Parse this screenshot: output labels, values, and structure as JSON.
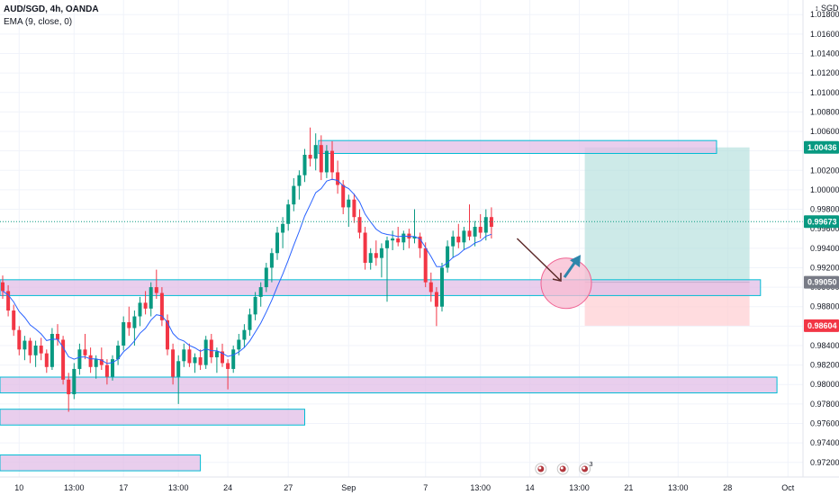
{
  "header": {
    "symbol_line": "AUD/SGD, 4h, OANDA",
    "indicator_line": "EMA (9, close, 0)"
  },
  "chart_data": {
    "type": "candlestick",
    "currency_label": "SGD",
    "ylim": [
      0.9705,
      1.0195
    ],
    "y_ticks": [
      "1.01800",
      "1.01600",
      "1.01400",
      "1.01200",
      "1.01000",
      "1.00800",
      "1.00600",
      "1.00400",
      "1.00200",
      "1.00000",
      "0.99800",
      "0.99600",
      "0.99400",
      "0.99200",
      "0.99000",
      "0.98800",
      "0.98600",
      "0.98400",
      "0.98200",
      "0.98000",
      "0.97800",
      "0.97600",
      "0.97400",
      "0.97200"
    ],
    "y_tick_values": [
      1.018,
      1.016,
      1.014,
      1.012,
      1.01,
      1.008,
      1.006,
      1.004,
      1.002,
      1.0,
      0.998,
      0.996,
      0.994,
      0.992,
      0.99,
      0.988,
      0.986,
      0.984,
      0.982,
      0.98,
      0.978,
      0.976,
      0.974,
      0.972
    ],
    "x_ticks": [
      {
        "label": "10",
        "bar": 3
      },
      {
        "label": "13:00",
        "bar": 13
      },
      {
        "label": "17",
        "bar": 22
      },
      {
        "label": "13:00",
        "bar": 32
      },
      {
        "label": "24",
        "bar": 41
      },
      {
        "label": "27",
        "bar": 52
      },
      {
        "label": "Sep",
        "bar": 63
      },
      {
        "label": "7",
        "bar": 77
      },
      {
        "label": "13:00",
        "bar": 87
      },
      {
        "label": "14",
        "bar": 96
      },
      {
        "label": "13:00",
        "bar": 105
      },
      {
        "label": "21",
        "bar": 114
      },
      {
        "label": "13:00",
        "bar": 123
      },
      {
        "label": "28",
        "bar": 132
      },
      {
        "label": "Oct",
        "bar": 143
      }
    ],
    "bar_count_total": 147,
    "ohlc": [
      [
        0.9905,
        0.9912,
        0.9888,
        0.9896
      ],
      [
        0.9896,
        0.9902,
        0.987,
        0.9876
      ],
      [
        0.9876,
        0.9882,
        0.985,
        0.9856
      ],
      [
        0.9856,
        0.986,
        0.983,
        0.9836
      ],
      [
        0.9836,
        0.985,
        0.9825,
        0.9845
      ],
      [
        0.9845,
        0.9848,
        0.9822,
        0.983
      ],
      [
        0.983,
        0.9845,
        0.9818,
        0.984
      ],
      [
        0.984,
        0.9848,
        0.9825,
        0.9832
      ],
      [
        0.9832,
        0.9836,
        0.9812,
        0.9818
      ],
      [
        0.9818,
        0.9858,
        0.9815,
        0.9852
      ],
      [
        0.9852,
        0.9862,
        0.984,
        0.9846
      ],
      [
        0.9846,
        0.985,
        0.98,
        0.9805
      ],
      [
        0.9805,
        0.9812,
        0.9772,
        0.979
      ],
      [
        0.979,
        0.9822,
        0.9785,
        0.9816
      ],
      [
        0.9816,
        0.9842,
        0.981,
        0.9836
      ],
      [
        0.9836,
        0.9852,
        0.9826,
        0.983
      ],
      [
        0.983,
        0.9838,
        0.9812,
        0.9818
      ],
      [
        0.9818,
        0.983,
        0.9806,
        0.9826
      ],
      [
        0.9826,
        0.9838,
        0.9815,
        0.982
      ],
      [
        0.982,
        0.9826,
        0.98,
        0.9808
      ],
      [
        0.9808,
        0.983,
        0.9804,
        0.9826
      ],
      [
        0.9826,
        0.9845,
        0.982,
        0.984
      ],
      [
        0.984,
        0.987,
        0.9835,
        0.9864
      ],
      [
        0.9864,
        0.988,
        0.985,
        0.9858
      ],
      [
        0.9858,
        0.9876,
        0.984,
        0.987
      ],
      [
        0.987,
        0.989,
        0.986,
        0.9884
      ],
      [
        0.9884,
        0.9896,
        0.9872,
        0.9878
      ],
      [
        0.9878,
        0.9905,
        0.987,
        0.99
      ],
      [
        0.99,
        0.9918,
        0.9888,
        0.9894
      ],
      [
        0.9894,
        0.99,
        0.986,
        0.9866
      ],
      [
        0.9866,
        0.9872,
        0.983,
        0.9836
      ],
      [
        0.9836,
        0.9842,
        0.98,
        0.9808
      ],
      [
        0.9808,
        0.983,
        0.978,
        0.9824
      ],
      [
        0.9824,
        0.9842,
        0.9818,
        0.9836
      ],
      [
        0.9836,
        0.9842,
        0.9818,
        0.9822
      ],
      [
        0.9822,
        0.9832,
        0.9812,
        0.9828
      ],
      [
        0.9828,
        0.9836,
        0.9815,
        0.982
      ],
      [
        0.982,
        0.985,
        0.9816,
        0.9846
      ],
      [
        0.9846,
        0.9852,
        0.9822,
        0.9828
      ],
      [
        0.9828,
        0.9838,
        0.9812,
        0.9834
      ],
      [
        0.9834,
        0.9842,
        0.9818,
        0.9822
      ],
      [
        0.9822,
        0.9826,
        0.9795,
        0.9816
      ],
      [
        0.9816,
        0.984,
        0.9812,
        0.9836
      ],
      [
        0.9836,
        0.9852,
        0.983,
        0.9846
      ],
      [
        0.9846,
        0.9862,
        0.9838,
        0.9856
      ],
      [
        0.9856,
        0.9878,
        0.985,
        0.9872
      ],
      [
        0.9872,
        0.9895,
        0.9866,
        0.989
      ],
      [
        0.989,
        0.9905,
        0.988,
        0.99
      ],
      [
        0.99,
        0.9925,
        0.9895,
        0.992
      ],
      [
        0.992,
        0.994,
        0.9905,
        0.9935
      ],
      [
        0.9935,
        0.9962,
        0.9928,
        0.9956
      ],
      [
        0.9956,
        0.9972,
        0.994,
        0.9965
      ],
      [
        0.9965,
        0.999,
        0.9958,
        0.9985
      ],
      [
        0.9985,
        1.0012,
        0.9978,
        1.0004
      ],
      [
        1.0004,
        1.002,
        0.999,
        1.0015
      ],
      [
        1.0015,
        1.0042,
        1.0008,
        1.0036
      ],
      [
        1.0036,
        1.0064,
        1.0024,
        1.0032
      ],
      [
        1.0032,
        1.0058,
        1.002,
        1.0046
      ],
      [
        1.0046,
        1.0056,
        1.001,
        1.0018
      ],
      [
        1.0018,
        1.0046,
        1.0012,
        1.004
      ],
      [
        1.004,
        1.005,
        1.001,
        1.0018
      ],
      [
        1.0018,
        1.003,
        0.9996,
        1.0005
      ],
      [
        1.0005,
        1.001,
        0.9975,
        0.9982
      ],
      [
        0.9982,
        0.9995,
        0.9962,
        0.999
      ],
      [
        0.999,
        0.9996,
        0.9966,
        0.9972
      ],
      [
        0.9972,
        0.998,
        0.995,
        0.9956
      ],
      [
        0.9956,
        0.9962,
        0.9918,
        0.9925
      ],
      [
        0.9925,
        0.994,
        0.9918,
        0.9935
      ],
      [
        0.9935,
        0.9948,
        0.9922,
        0.993
      ],
      [
        0.993,
        0.9945,
        0.991,
        0.994
      ],
      [
        0.994,
        0.9952,
        0.9885,
        0.9948
      ],
      [
        0.9948,
        0.9958,
        0.9938,
        0.995
      ],
      [
        0.995,
        0.9962,
        0.9942,
        0.9946
      ],
      [
        0.9946,
        0.9958,
        0.9938,
        0.9955
      ],
      [
        0.9955,
        0.996,
        0.994,
        0.995
      ],
      [
        0.995,
        0.998,
        0.9945,
        0.9952
      ],
      [
        0.9952,
        0.9956,
        0.993,
        0.994
      ],
      [
        0.994,
        0.9946,
        0.99,
        0.9905
      ],
      [
        0.9905,
        0.9915,
        0.9885,
        0.9895
      ],
      [
        0.9895,
        0.99,
        0.986,
        0.988
      ],
      [
        0.988,
        0.9925,
        0.9875,
        0.992
      ],
      [
        0.992,
        0.9948,
        0.9915,
        0.9942
      ],
      [
        0.9942,
        0.9958,
        0.993,
        0.9952
      ],
      [
        0.9952,
        0.9965,
        0.994,
        0.9946
      ],
      [
        0.9946,
        0.9962,
        0.9938,
        0.9958
      ],
      [
        0.9958,
        0.9985,
        0.9948,
        0.9952
      ],
      [
        0.9952,
        0.9968,
        0.9942,
        0.9962
      ],
      [
        0.9962,
        0.9975,
        0.995,
        0.9956
      ],
      [
        0.9956,
        0.998,
        0.9948,
        0.9972
      ],
      [
        0.9972,
        0.9982,
        0.995,
        0.9962
      ]
    ],
    "ema": {
      "name": "EMA (9, close, 0)",
      "period": 9
    },
    "zones": [
      {
        "from": 1.0046,
        "to": 1.0042,
        "start_bar": 58,
        "end_bar": 130
      },
      {
        "from": 0.9903,
        "to": 0.9896,
        "start_bar": 0,
        "end_bar": 138
      },
      {
        "from": 0.9803,
        "to": 0.9796,
        "start_bar": 0,
        "end_bar": 141
      },
      {
        "from": 0.977,
        "to": 0.9763,
        "start_bar": 0,
        "end_bar": 55
      },
      {
        "from": 0.9723,
        "to": 0.9716,
        "start_bar": 0,
        "end_bar": 36
      }
    ],
    "position": {
      "type": "long",
      "start_bar": 106,
      "end_bar": 136,
      "entry": 0.9905,
      "target": 1.00436,
      "stop": 0.98604
    },
    "annotation_arrow": {
      "from_bar": 94,
      "from_price": 0.995,
      "to_bar": 100,
      "to_price": 0.9912
    },
    "highlight_circle": {
      "bar": 100,
      "price": 0.9904
    },
    "price_tags": [
      {
        "label": "1.00436",
        "value": 1.00436,
        "color": "#089981"
      },
      {
        "label": "0.99673",
        "value": 0.99673,
        "color": "#089981"
      },
      {
        "label": "0.99050",
        "value": 0.9905,
        "color": "#787b86"
      },
      {
        "label": "0.98604",
        "value": 0.98604,
        "color": "#f23645"
      }
    ],
    "colors": {
      "up": "#089981",
      "down": "#f23645",
      "ema": "#2962ff",
      "zone_fill": "#e1bee7",
      "zone_border": "#00bcd4",
      "target_fill": "#b2dfdb",
      "stop_fill": "#ffcdd2",
      "circle_fill": "#f8bbd0",
      "circle_border": "#f06292",
      "arrow_dark": "#5d2a2a",
      "arrow_teal": "#2e86ab"
    },
    "grid": true
  },
  "footer": {
    "events": [
      {
        "icon": "economic-event-icon",
        "bar": 98,
        "badge": ""
      },
      {
        "icon": "economic-event-icon",
        "bar": 102,
        "badge": ""
      },
      {
        "icon": "economic-event-icon",
        "bar": 106,
        "badge": "3"
      }
    ]
  }
}
